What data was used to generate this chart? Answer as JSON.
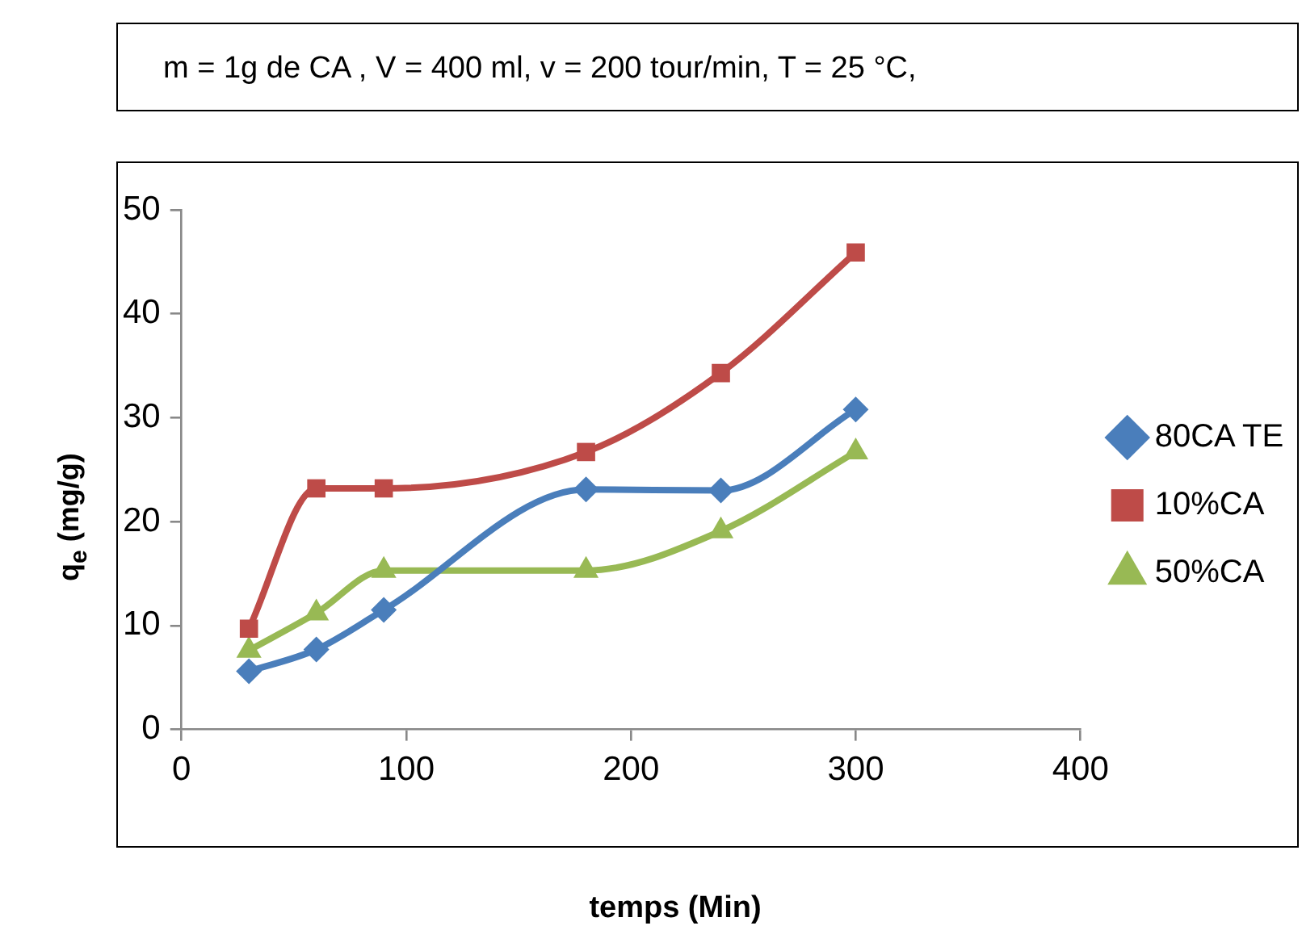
{
  "chart_data": {
    "type": "line",
    "title": "m = 1g de CA , V = 400 ml, v = 200 tour/min, T = 25 °C,",
    "xlabel": "temps (Min)",
    "ylabel": "q$_{e}$ (mg/g)",
    "x": [
      30,
      60,
      90,
      180,
      240,
      300
    ],
    "series": [
      {
        "name": "80CA TE",
        "color": "#4a7ebb",
        "marker": "diamond",
        "values": [
          5.6,
          7.7,
          11.5,
          23.1,
          23,
          30.8
        ]
      },
      {
        "name": "10%CA",
        "color": "#be4b48",
        "marker": "square",
        "values": [
          9.7,
          23.2,
          23.2,
          26.7,
          34.3,
          45.9
        ]
      },
      {
        "name": "50%CA",
        "color": "#98b954",
        "marker": "triangle",
        "values": [
          7.6,
          11.2,
          15.3,
          15.3,
          19.1,
          26.7
        ]
      }
    ],
    "xlim": [
      0,
      400
    ],
    "xticks": [
      0,
      100,
      200,
      300,
      400
    ],
    "ylim": [
      0,
      50
    ],
    "yticks": [
      0,
      10,
      20,
      30,
      40,
      50
    ],
    "grid": false,
    "legend": "right",
    "line_style": "solid"
  }
}
